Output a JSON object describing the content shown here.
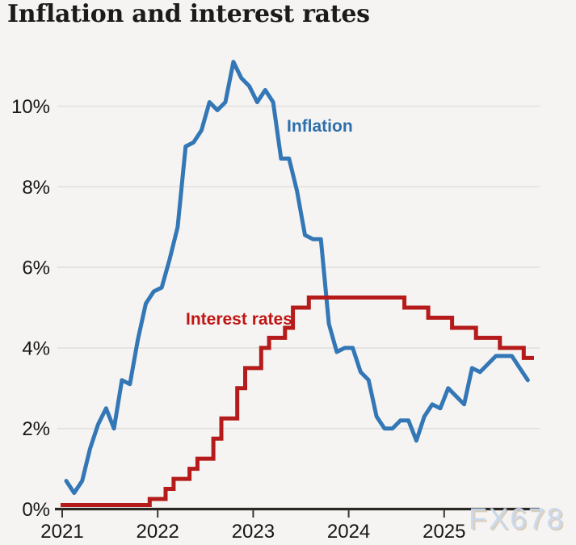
{
  "header": {
    "title": "Inflation and interest rates"
  },
  "page": {
    "background": "#f5f4f2",
    "watermark": "FX678",
    "watermark_color": "#c9d9ee"
  },
  "chart_data": {
    "type": "line",
    "title": "Inflation and interest rates",
    "x_axis": {
      "tick_labels": [
        "2021",
        "2022",
        "2023",
        "2024",
        "2025"
      ]
    },
    "y_axis": {
      "tick_labels": [
        "0%",
        "2%",
        "4%",
        "6%",
        "8%",
        "10%"
      ],
      "tick_values": [
        0,
        2,
        4,
        6,
        8,
        10
      ],
      "ylim": [
        0,
        11.5
      ],
      "unit": "%"
    },
    "grid": "horizontal",
    "legend_position": "inline-labels",
    "series": [
      {
        "name": "Inflation",
        "type": "line",
        "color": "#3377b6",
        "frequency": "monthly",
        "start": "2021-01",
        "values": [
          0.7,
          0.4,
          0.7,
          1.5,
          2.1,
          2.5,
          2.0,
          3.2,
          3.1,
          4.2,
          5.1,
          5.4,
          5.5,
          6.2,
          7.0,
          9.0,
          9.1,
          9.4,
          10.1,
          9.9,
          10.1,
          11.1,
          10.7,
          10.5,
          10.1,
          10.4,
          10.1,
          8.7,
          8.7,
          7.9,
          6.8,
          6.7,
          6.7,
          4.6,
          3.9,
          4.0,
          4.0,
          3.4,
          3.2,
          2.3,
          2.0,
          2.0,
          2.2,
          2.2,
          1.7,
          2.3,
          2.6,
          2.5,
          3.0,
          2.8,
          2.6,
          3.5,
          3.4,
          3.6,
          3.8,
          3.8,
          3.8,
          3.5,
          3.2
        ]
      },
      {
        "name": "Interest rates",
        "type": "step",
        "color": "#b51b1b",
        "steps": [
          [
            "2021-01",
            0.1
          ],
          [
            "2021-12",
            0.25
          ],
          [
            "2022-02",
            0.5
          ],
          [
            "2022-03",
            0.75
          ],
          [
            "2022-05",
            1.0
          ],
          [
            "2022-06",
            1.25
          ],
          [
            "2022-08",
            1.75
          ],
          [
            "2022-09",
            2.25
          ],
          [
            "2022-11",
            3.0
          ],
          [
            "2022-12",
            3.5
          ],
          [
            "2023-02",
            4.0
          ],
          [
            "2023-03",
            4.25
          ],
          [
            "2023-05",
            4.5
          ],
          [
            "2023-06",
            5.0
          ],
          [
            "2023-08",
            5.25
          ],
          [
            "2024-08",
            5.0
          ],
          [
            "2024-11",
            4.75
          ],
          [
            "2025-02",
            4.5
          ],
          [
            "2025-05",
            4.25
          ],
          [
            "2025-08",
            4.0
          ],
          [
            "2025-11",
            3.75
          ]
        ]
      }
    ],
    "annotations": [
      {
        "text": "Inflation",
        "color": "#2d6fac",
        "x": 355,
        "y": 163
      },
      {
        "text": "Interest rates",
        "color": "#c11414",
        "x": 230,
        "y": 402
      }
    ],
    "watermark": "FX678"
  }
}
